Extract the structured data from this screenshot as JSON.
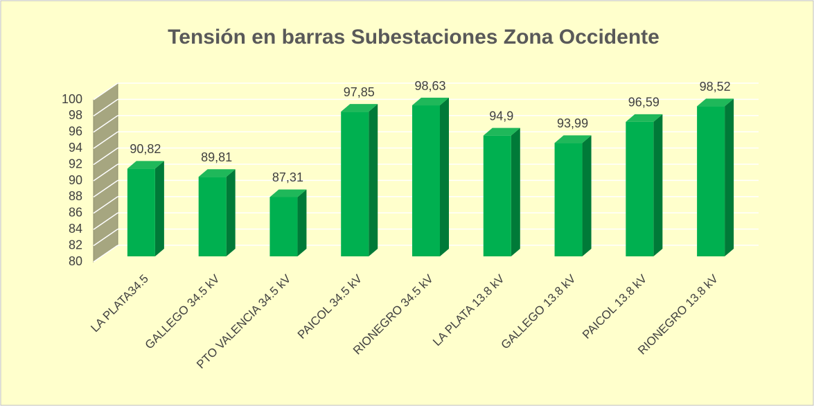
{
  "chart_data": {
    "type": "bar3d",
    "title": "Tensión en barras Subestaciones Zona Occidente",
    "categories": [
      "LA PLATA34.5",
      "GALLEGO 34.5 kV",
      "PTO VALENCIA 34.5 kV",
      "PAICOL 34.5 kV",
      "RIONEGRO 34.5 kV",
      "LA PLATA 13.8 kV",
      "GALLEGO 13.8 kV",
      "PAICOL 13.8 kV",
      "RIONEGRO 13.8 kV"
    ],
    "values": [
      90.82,
      89.81,
      87.31,
      97.85,
      98.63,
      94.9,
      93.99,
      96.59,
      98.52
    ],
    "value_labels": [
      "90,82",
      "89,81",
      "87,31",
      "97,85",
      "98,63",
      "94,9",
      "93,99",
      "96,59",
      "98,52"
    ],
    "color": "#00b050",
    "ylim": [
      80,
      100
    ],
    "yticks": [
      80,
      82,
      84,
      86,
      88,
      90,
      92,
      94,
      96,
      98,
      100
    ],
    "grid": true
  }
}
